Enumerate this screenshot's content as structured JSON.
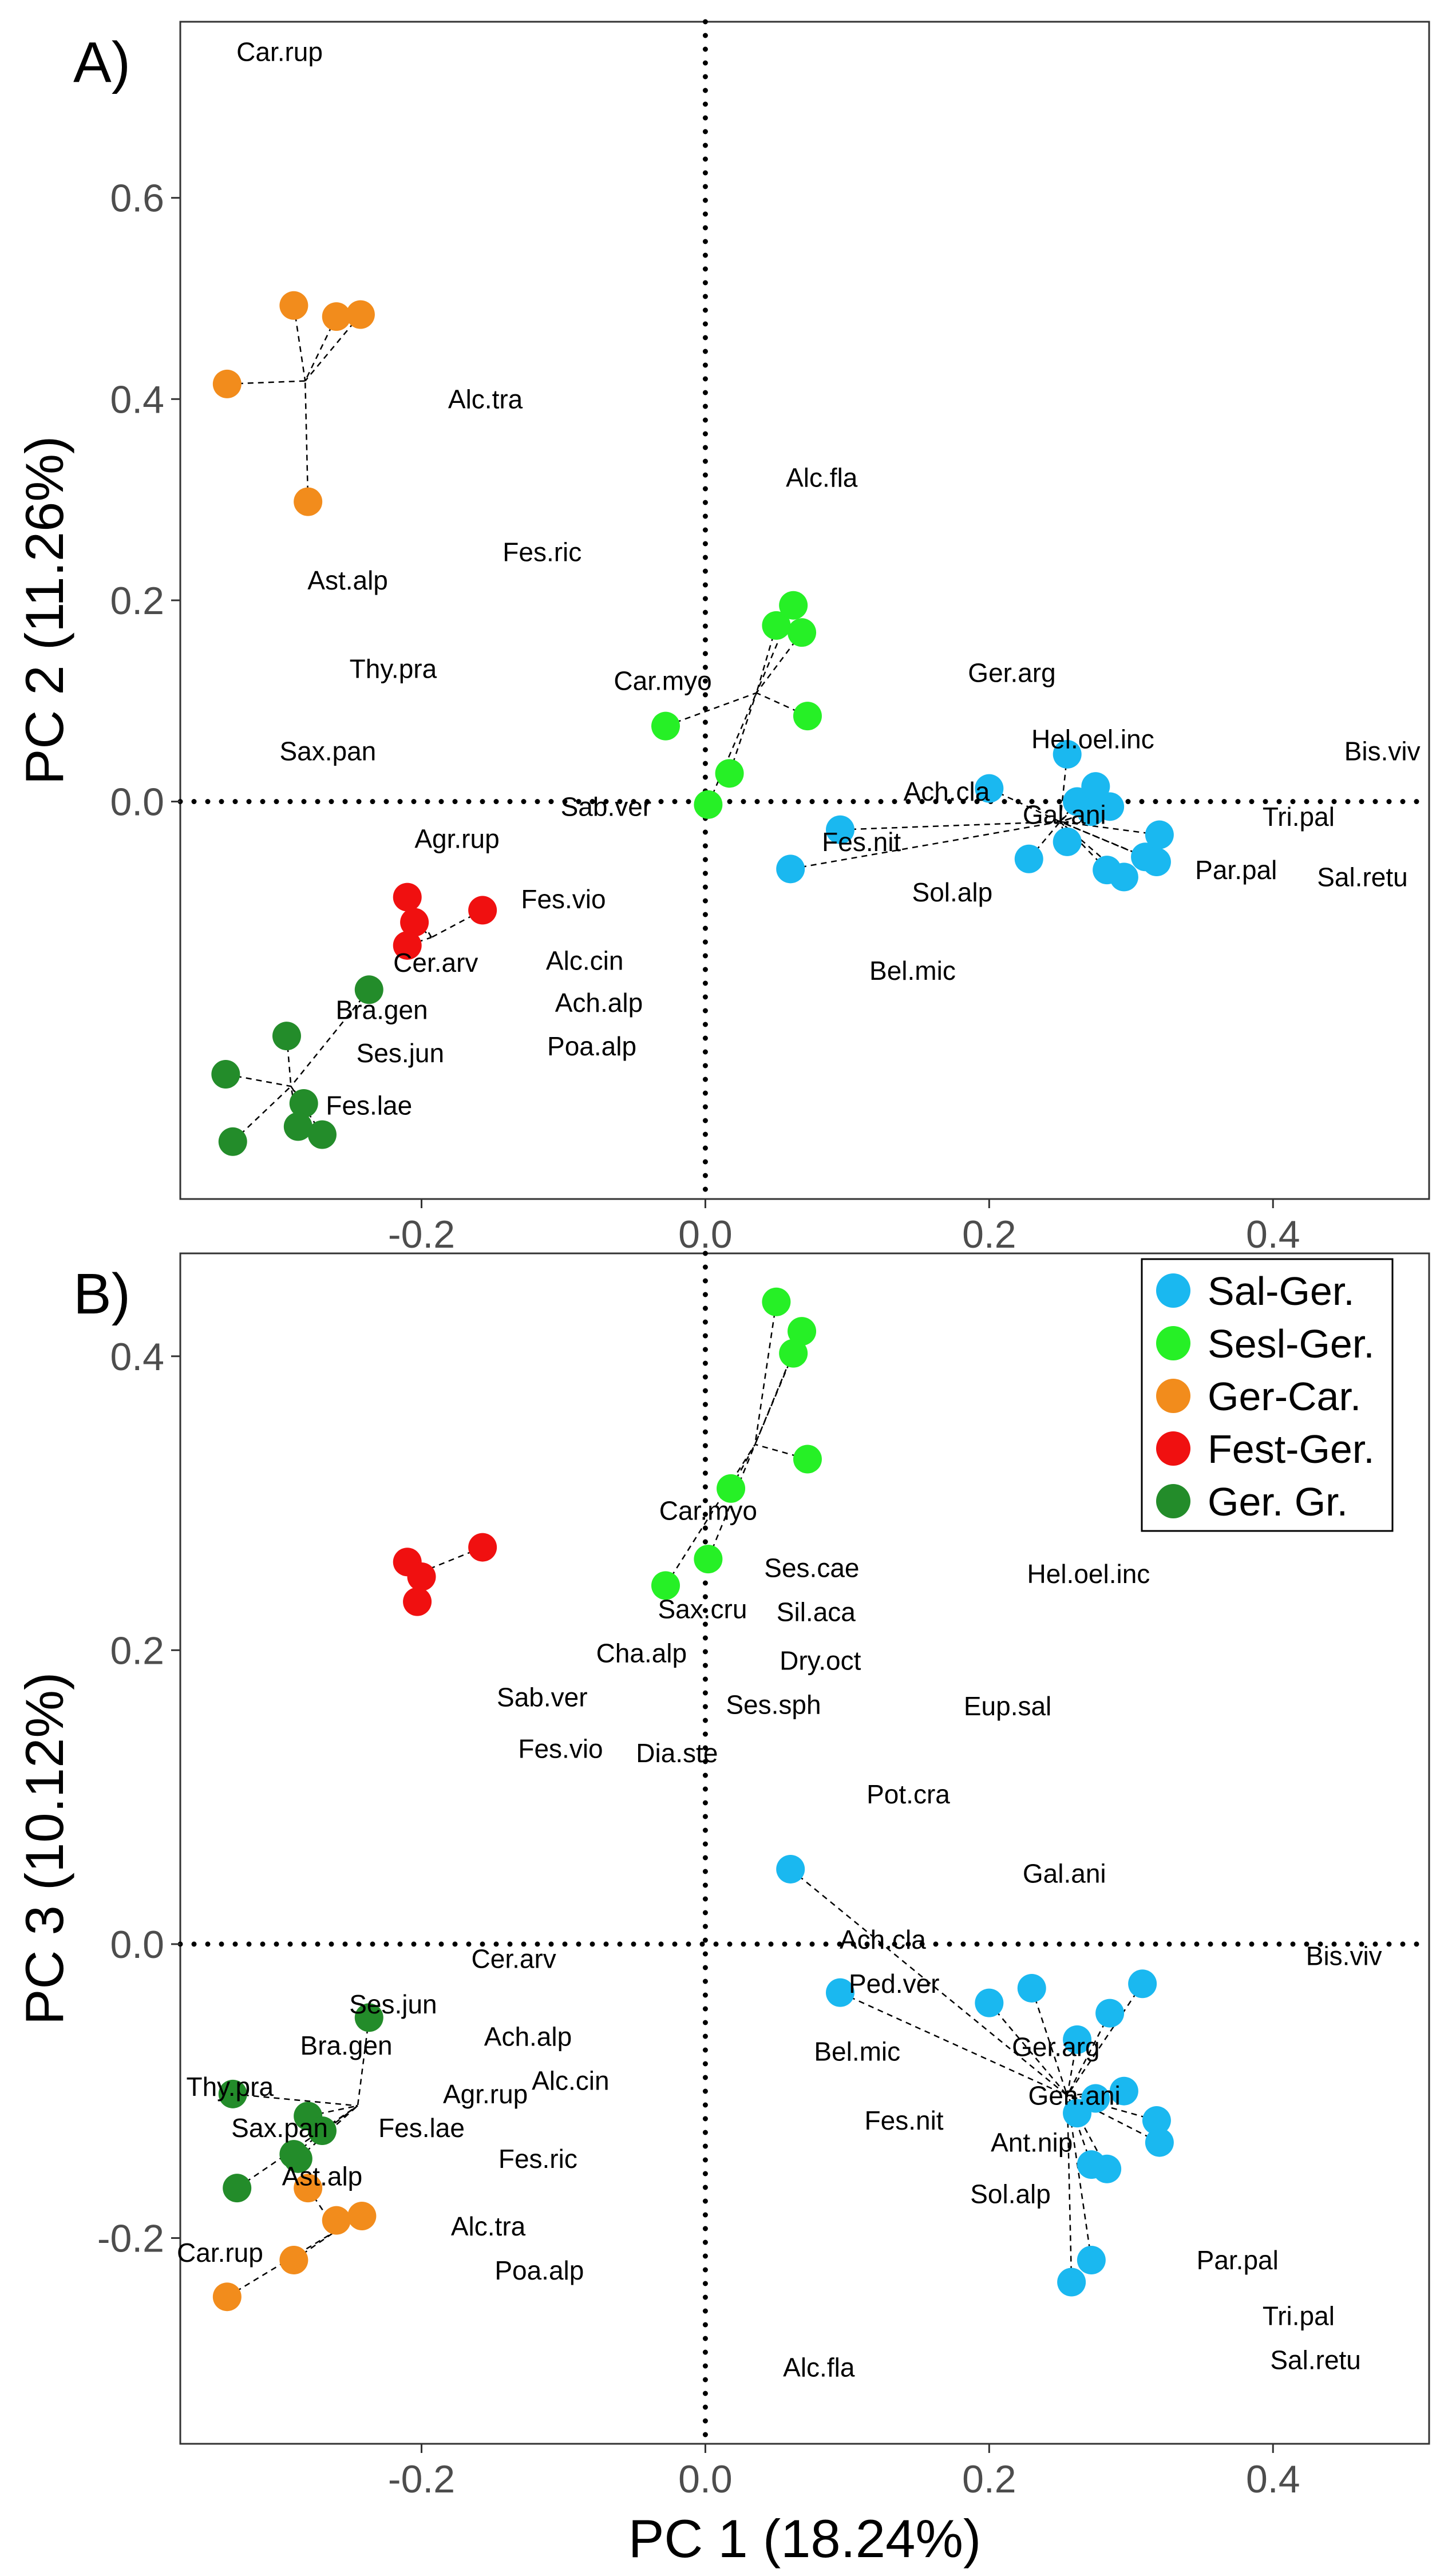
{
  "figure": {
    "xlabel": "PC 1 (18.24%)"
  },
  "legend": {
    "position": "top-right of panel B",
    "entries": [
      {
        "label": "Sal-Ger.",
        "color": "#1ab8f0"
      },
      {
        "label": "Sesl-Ger.",
        "color": "#26f026"
      },
      {
        "label": "Ger-Car.",
        "color": "#f28c1c"
      },
      {
        "label": "Fest-Ger.",
        "color": "#f01010"
      },
      {
        "label": "Ger. Gr.",
        "color": "#238c2a"
      }
    ]
  },
  "chart_data": [
    {
      "type": "scatter",
      "panel_label": "A)",
      "xlabel": "PC 1 (18.24%)",
      "ylabel": "PC 2 (11.26%)",
      "xlim": [
        -0.37,
        0.51
      ],
      "ylim": [
        -0.395,
        0.775
      ],
      "x_ticks": [
        -0.2,
        0.0,
        0.2,
        0.4
      ],
      "x_tick_labels": [
        "-0.2",
        "0.0",
        "0.2",
        "0.4"
      ],
      "y_ticks": [
        0.0,
        0.2,
        0.4,
        0.6
      ],
      "y_tick_labels": [
        "0.0",
        "0.2",
        "0.4",
        "0.6"
      ],
      "x_tick_labels_shown": true,
      "reference_lines": {
        "x": 0,
        "y": 0,
        "style": "dotted"
      },
      "centroids": [
        {
          "group": "Ger-Car.",
          "x": -0.282,
          "y": 0.418
        },
        {
          "group": "Sesl-Ger.",
          "x": 0.036,
          "y": 0.108
        },
        {
          "group": "Sal-Ger.",
          "x": 0.25,
          "y": -0.02
        },
        {
          "group": "Fest-Ger.",
          "x": -0.193,
          "y": -0.135
        },
        {
          "group": "Ger. Gr.",
          "x": -0.292,
          "y": -0.283
        }
      ],
      "series": [
        {
          "name": "Sal-Ger.",
          "points": [
            {
              "x": 0.06,
              "y": -0.067
            },
            {
              "x": 0.095,
              "y": -0.028
            },
            {
              "x": 0.2,
              "y": 0.013
            },
            {
              "x": 0.228,
              "y": -0.057
            },
            {
              "x": 0.255,
              "y": 0.047
            },
            {
              "x": 0.255,
              "y": -0.04
            },
            {
              "x": 0.262,
              "y": 0.0
            },
            {
              "x": 0.272,
              "y": -0.01
            },
            {
              "x": 0.275,
              "y": 0.015
            },
            {
              "x": 0.283,
              "y": -0.068
            },
            {
              "x": 0.285,
              "y": -0.005
            },
            {
              "x": 0.295,
              "y": -0.075
            },
            {
              "x": 0.31,
              "y": -0.055
            },
            {
              "x": 0.318,
              "y": -0.06
            },
            {
              "x": 0.32,
              "y": -0.033
            }
          ]
        },
        {
          "name": "Sesl-Ger.",
          "points": [
            {
              "x": -0.028,
              "y": 0.075
            },
            {
              "x": 0.002,
              "y": -0.003
            },
            {
              "x": 0.017,
              "y": 0.028
            },
            {
              "x": 0.05,
              "y": 0.175
            },
            {
              "x": 0.062,
              "y": 0.195
            },
            {
              "x": 0.068,
              "y": 0.168
            },
            {
              "x": 0.072,
              "y": 0.085
            }
          ]
        },
        {
          "name": "Ger-Car.",
          "points": [
            {
              "x": -0.337,
              "y": 0.415
            },
            {
              "x": -0.29,
              "y": 0.493
            },
            {
              "x": -0.26,
              "y": 0.482
            },
            {
              "x": -0.243,
              "y": 0.484
            },
            {
              "x": -0.28,
              "y": 0.298
            }
          ]
        },
        {
          "name": "Fest-Ger.",
          "points": [
            {
              "x": -0.21,
              "y": -0.095
            },
            {
              "x": -0.205,
              "y": -0.12
            },
            {
              "x": -0.21,
              "y": -0.143
            },
            {
              "x": -0.157,
              "y": -0.108
            }
          ]
        },
        {
          "name": "Ger. Gr.",
          "points": [
            {
              "x": -0.237,
              "y": -0.187
            },
            {
              "x": -0.295,
              "y": -0.233
            },
            {
              "x": -0.338,
              "y": -0.271
            },
            {
              "x": -0.333,
              "y": -0.338
            },
            {
              "x": -0.283,
              "y": -0.3
            },
            {
              "x": -0.287,
              "y": -0.323
            },
            {
              "x": -0.27,
              "y": -0.331
            }
          ]
        }
      ],
      "species_labels": [
        {
          "text": "Car.rup",
          "x": -0.3,
          "y": 0.745
        },
        {
          "text": "Alc.tra",
          "x": -0.155,
          "y": 0.4
        },
        {
          "text": "Fes.ric",
          "x": -0.115,
          "y": 0.248
        },
        {
          "text": "Ast.alp",
          "x": -0.252,
          "y": 0.22
        },
        {
          "text": "Thy.pra",
          "x": -0.22,
          "y": 0.132
        },
        {
          "text": "Sax.pan",
          "x": -0.266,
          "y": 0.05
        },
        {
          "text": "Alc.fla",
          "x": 0.082,
          "y": 0.322
        },
        {
          "text": "Car.myo",
          "x": -0.03,
          "y": 0.12
        },
        {
          "text": "Sab.ver",
          "x": -0.07,
          "y": -0.005
        },
        {
          "text": "Ger.arg",
          "x": 0.216,
          "y": 0.128
        },
        {
          "text": "Hel.oel.inc",
          "x": 0.273,
          "y": 0.062
        },
        {
          "text": "Bis.viv",
          "x": 0.477,
          "y": 0.05
        },
        {
          "text": "Ach.cla",
          "x": 0.17,
          "y": 0.01
        },
        {
          "text": "Gal.ani",
          "x": 0.253,
          "y": -0.013
        },
        {
          "text": "Tri.pal",
          "x": 0.418,
          "y": -0.015
        },
        {
          "text": "Fes.nit",
          "x": 0.11,
          "y": -0.04
        },
        {
          "text": "Par.pal",
          "x": 0.374,
          "y": -0.068
        },
        {
          "text": "Sal.retu",
          "x": 0.463,
          "y": -0.075
        },
        {
          "text": "Sol.alp",
          "x": 0.174,
          "y": -0.09
        },
        {
          "text": "Bel.mic",
          "x": 0.146,
          "y": -0.168
        },
        {
          "text": "Agr.rup",
          "x": -0.175,
          "y": -0.037
        },
        {
          "text": "Fes.vio",
          "x": -0.1,
          "y": -0.097
        },
        {
          "text": "Cer.arv",
          "x": -0.19,
          "y": -0.16
        },
        {
          "text": "Alc.cin",
          "x": -0.085,
          "y": -0.158
        },
        {
          "text": "Ach.alp",
          "x": -0.075,
          "y": -0.2
        },
        {
          "text": "Bra.gen",
          "x": -0.228,
          "y": -0.207
        },
        {
          "text": "Ses.jun",
          "x": -0.215,
          "y": -0.25
        },
        {
          "text": "Poa.alp",
          "x": -0.08,
          "y": -0.243
        },
        {
          "text": "Fes.lae",
          "x": -0.237,
          "y": -0.302
        }
      ]
    },
    {
      "type": "scatter",
      "panel_label": "B)",
      "xlabel": "PC 1 (18.24%)",
      "ylabel": "PC 3 (10.12%)",
      "xlim": [
        -0.37,
        0.51
      ],
      "ylim": [
        -0.34,
        0.47
      ],
      "x_ticks": [
        -0.2,
        0.0,
        0.2,
        0.4
      ],
      "x_tick_labels": [
        "-0.2",
        "0.0",
        "0.2",
        "0.4"
      ],
      "y_ticks": [
        -0.2,
        0.0,
        0.2,
        0.4
      ],
      "y_tick_labels": [
        "-0.2",
        "0.0",
        "0.2",
        "0.4"
      ],
      "x_tick_labels_shown": true,
      "reference_lines": {
        "x": 0,
        "y": 0,
        "style": "dotted"
      },
      "centroids": [
        {
          "group": "Sesl-Ger.",
          "x": 0.035,
          "y": 0.34
        },
        {
          "group": "Fest-Ger.",
          "x": -0.203,
          "y": 0.252
        },
        {
          "group": "Sal-Ger.",
          "x": 0.255,
          "y": -0.103
        },
        {
          "group": "Ger. Gr.",
          "x": -0.245,
          "y": -0.11
        },
        {
          "group": "Ger-Car.",
          "x": -0.26,
          "y": -0.195
        }
      ],
      "series": [
        {
          "name": "Sal-Ger.",
          "points": [
            {
              "x": 0.06,
              "y": 0.051
            },
            {
              "x": 0.095,
              "y": -0.033
            },
            {
              "x": 0.2,
              "y": -0.04
            },
            {
              "x": 0.23,
              "y": -0.03
            },
            {
              "x": 0.262,
              "y": -0.065
            },
            {
              "x": 0.262,
              "y": -0.115
            },
            {
              "x": 0.275,
              "y": -0.105
            },
            {
              "x": 0.285,
              "y": -0.047
            },
            {
              "x": 0.295,
              "y": -0.1
            },
            {
              "x": 0.308,
              "y": -0.027
            },
            {
              "x": 0.318,
              "y": -0.12
            },
            {
              "x": 0.32,
              "y": -0.135
            },
            {
              "x": 0.272,
              "y": -0.15
            },
            {
              "x": 0.283,
              "y": -0.153
            },
            {
              "x": 0.272,
              "y": -0.215
            },
            {
              "x": 0.258,
              "y": -0.23
            }
          ]
        },
        {
          "name": "Sesl-Ger.",
          "points": [
            {
              "x": 0.05,
              "y": 0.437
            },
            {
              "x": 0.068,
              "y": 0.417
            },
            {
              "x": 0.062,
              "y": 0.402
            },
            {
              "x": 0.072,
              "y": 0.33
            },
            {
              "x": 0.018,
              "y": 0.31
            },
            {
              "x": 0.002,
              "y": 0.262
            },
            {
              "x": -0.028,
              "y": 0.244
            }
          ]
        },
        {
          "name": "Fest-Ger.",
          "points": [
            {
              "x": -0.21,
              "y": 0.26
            },
            {
              "x": -0.2,
              "y": 0.25
            },
            {
              "x": -0.203,
              "y": 0.233
            },
            {
              "x": -0.157,
              "y": 0.27
            }
          ]
        },
        {
          "name": "Ger. Gr.",
          "points": [
            {
              "x": -0.237,
              "y": -0.05
            },
            {
              "x": -0.333,
              "y": -0.102
            },
            {
              "x": -0.28,
              "y": -0.117
            },
            {
              "x": -0.27,
              "y": -0.127
            },
            {
              "x": -0.29,
              "y": -0.143
            },
            {
              "x": -0.287,
              "y": -0.146
            },
            {
              "x": -0.33,
              "y": -0.166
            }
          ]
        },
        {
          "name": "Ger-Car.",
          "points": [
            {
              "x": -0.28,
              "y": -0.166
            },
            {
              "x": -0.26,
              "y": -0.188
            },
            {
              "x": -0.242,
              "y": -0.185
            },
            {
              "x": -0.29,
              "y": -0.215
            },
            {
              "x": -0.337,
              "y": -0.24
            }
          ]
        }
      ],
      "species_labels": [
        {
          "text": "Car.myo",
          "x": 0.002,
          "y": 0.295
        },
        {
          "text": "Ses.cae",
          "x": 0.075,
          "y": 0.256
        },
        {
          "text": "Hel.oel.inc",
          "x": 0.27,
          "y": 0.252
        },
        {
          "text": "Sax.cru",
          "x": -0.002,
          "y": 0.228
        },
        {
          "text": "Sil.aca",
          "x": 0.078,
          "y": 0.226
        },
        {
          "text": "Cha.alp",
          "x": -0.045,
          "y": 0.198
        },
        {
          "text": "Dry.oct",
          "x": 0.081,
          "y": 0.193
        },
        {
          "text": "Sab.ver",
          "x": -0.115,
          "y": 0.168
        },
        {
          "text": "Ses.sph",
          "x": 0.048,
          "y": 0.163
        },
        {
          "text": "Eup.sal",
          "x": 0.213,
          "y": 0.162
        },
        {
          "text": "Fes.vio",
          "x": -0.102,
          "y": 0.133
        },
        {
          "text": "Dia.ste",
          "x": -0.02,
          "y": 0.13
        },
        {
          "text": "Pot.cra",
          "x": 0.143,
          "y": 0.102
        },
        {
          "text": "Gal.ani",
          "x": 0.253,
          "y": 0.048
        },
        {
          "text": "Ach.cla",
          "x": 0.125,
          "y": 0.003
        },
        {
          "text": "Bis.viv",
          "x": 0.45,
          "y": -0.008
        },
        {
          "text": "Cer.arv",
          "x": -0.135,
          "y": -0.01
        },
        {
          "text": "Ped.ver",
          "x": 0.133,
          "y": -0.027
        },
        {
          "text": "Ses.jun",
          "x": -0.22,
          "y": -0.041
        },
        {
          "text": "Bra.gen",
          "x": -0.253,
          "y": -0.069
        },
        {
          "text": "Ach.alp",
          "x": -0.125,
          "y": -0.063
        },
        {
          "text": "Bel.mic",
          "x": 0.107,
          "y": -0.073
        },
        {
          "text": "Ger.arg",
          "x": 0.247,
          "y": -0.07
        },
        {
          "text": "Alc.cin",
          "x": -0.095,
          "y": -0.093
        },
        {
          "text": "Thy.pra",
          "x": -0.335,
          "y": -0.097
        },
        {
          "text": "Agr.rup",
          "x": -0.155,
          "y": -0.102
        },
        {
          "text": "Gen.ani",
          "x": 0.26,
          "y": -0.103
        },
        {
          "text": "Sax.pan",
          "x": -0.3,
          "y": -0.125
        },
        {
          "text": "Fes.nit",
          "x": 0.14,
          "y": -0.12
        },
        {
          "text": "Fes.lae",
          "x": -0.2,
          "y": -0.125
        },
        {
          "text": "Ant.nip",
          "x": 0.23,
          "y": -0.135
        },
        {
          "text": "Fes.ric",
          "x": -0.118,
          "y": -0.146
        },
        {
          "text": "Ast.alp",
          "x": -0.27,
          "y": -0.158
        },
        {
          "text": "Sol.alp",
          "x": 0.215,
          "y": -0.17
        },
        {
          "text": "Alc.tra",
          "x": -0.153,
          "y": -0.192
        },
        {
          "text": "Car.rup",
          "x": -0.342,
          "y": -0.21
        },
        {
          "text": "Poa.alp",
          "x": -0.117,
          "y": -0.222
        },
        {
          "text": "Par.pal",
          "x": 0.375,
          "y": -0.215
        },
        {
          "text": "Tri.pal",
          "x": 0.418,
          "y": -0.253
        },
        {
          "text": "Sal.retu",
          "x": 0.43,
          "y": -0.283
        },
        {
          "text": "Alc.fla",
          "x": 0.08,
          "y": -0.288
        }
      ]
    }
  ]
}
